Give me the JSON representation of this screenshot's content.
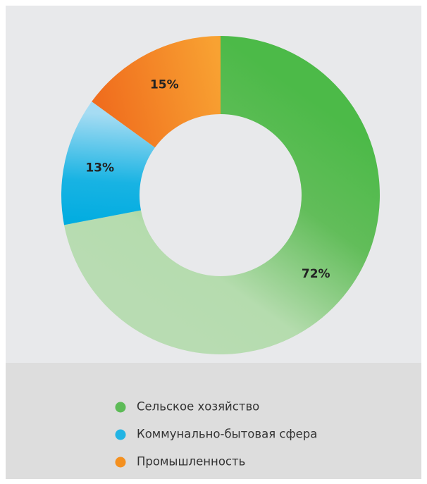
{
  "chart_data": {
    "type": "pie",
    "donut": true,
    "categories": [
      "Сельское хозяйство",
      "Коммунально-бытовая сфера",
      "Промышленность"
    ],
    "values": [
      72,
      13,
      15
    ],
    "value_labels": [
      "72%",
      "13%",
      "15%"
    ],
    "colors": [
      "#5dbb57",
      "#22b4e4",
      "#f4901f"
    ],
    "legend": "bottom"
  }
}
